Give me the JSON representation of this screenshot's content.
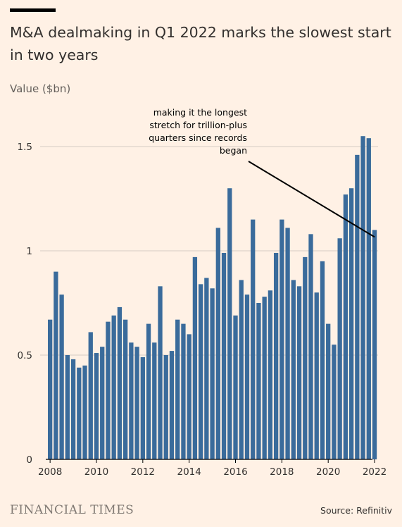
{
  "header": {
    "title": "M&A dealmaking in Q1 2022 marks the slowest start in two years",
    "unit_label": "Value ($bn)"
  },
  "footer": {
    "brand": "FINANCIAL TIMES",
    "source": "Source: Refinitiv"
  },
  "colors": {
    "background": "#fff1e5",
    "bar": "#3a6b9b",
    "gridline": "#d6cbc2",
    "text": "#33302e"
  },
  "chart_data": {
    "type": "bar",
    "title": "M&A dealmaking in Q1 2022 marks the slowest start in two years",
    "xlabel": "",
    "ylabel": "Value ($bn)",
    "ylim": [
      0,
      1.6
    ],
    "yticks": [
      0,
      0.5,
      1,
      1.5
    ],
    "ytick_labels": [
      "0",
      "0.5",
      "1",
      "1.5"
    ],
    "xticks": [
      "2008",
      "2010",
      "2012",
      "2014",
      "2016",
      "2018",
      "2020",
      "2022"
    ],
    "grid": true,
    "categories": [
      "2008 Q1",
      "2008 Q2",
      "2008 Q3",
      "2008 Q4",
      "2009 Q1",
      "2009 Q2",
      "2009 Q3",
      "2009 Q4",
      "2010 Q1",
      "2010 Q2",
      "2010 Q3",
      "2010 Q4",
      "2011 Q1",
      "2011 Q2",
      "2011 Q3",
      "2011 Q4",
      "2012 Q1",
      "2012 Q2",
      "2012 Q3",
      "2012 Q4",
      "2013 Q1",
      "2013 Q2",
      "2013 Q3",
      "2013 Q4",
      "2014 Q1",
      "2014 Q2",
      "2014 Q3",
      "2014 Q4",
      "2015 Q1",
      "2015 Q2",
      "2015 Q3",
      "2015 Q4",
      "2016 Q1",
      "2016 Q2",
      "2016 Q3",
      "2016 Q4",
      "2017 Q1",
      "2017 Q2",
      "2017 Q3",
      "2017 Q4",
      "2018 Q1",
      "2018 Q2",
      "2018 Q3",
      "2018 Q4",
      "2019 Q1",
      "2019 Q2",
      "2019 Q3",
      "2019 Q4",
      "2020 Q1",
      "2020 Q2",
      "2020 Q3",
      "2020 Q4",
      "2021 Q1",
      "2021 Q2",
      "2021 Q3",
      "2021 Q4",
      "2022 Q1"
    ],
    "values": [
      0.67,
      0.9,
      0.79,
      0.5,
      0.48,
      0.44,
      0.45,
      0.61,
      0.51,
      0.54,
      0.66,
      0.69,
      0.73,
      0.67,
      0.56,
      0.54,
      0.49,
      0.65,
      0.56,
      0.83,
      0.5,
      0.52,
      0.67,
      0.65,
      0.6,
      0.97,
      0.84,
      0.87,
      0.82,
      1.11,
      0.99,
      1.3,
      0.69,
      0.86,
      0.79,
      1.15,
      0.75,
      0.78,
      0.81,
      0.99,
      1.15,
      1.11,
      0.86,
      0.83,
      0.97,
      1.08,
      0.8,
      0.95,
      0.65,
      0.55,
      1.06,
      1.27,
      1.3,
      1.46,
      1.55,
      1.54,
      1.1
    ],
    "annotation": {
      "lines": [
        "making it the longest",
        "stretch for trillion-plus",
        "quarters since records",
        "began"
      ],
      "target_category": "2022 Q1"
    }
  }
}
